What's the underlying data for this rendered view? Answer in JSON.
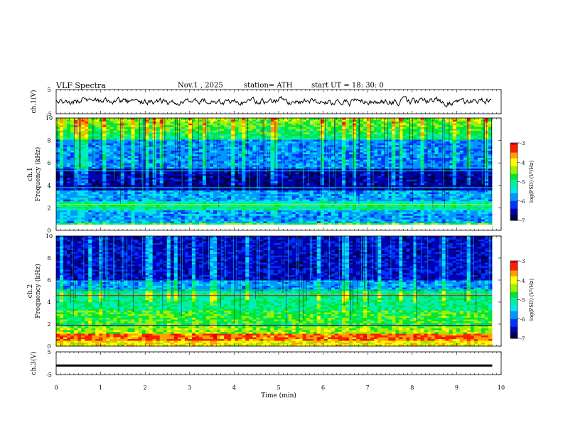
{
  "header": {
    "title": "VLF  Spectra",
    "date": "Nov.1  , 2025",
    "station": "station= ATH",
    "start": "start  UT  =   18: 30: 0"
  },
  "colors": {
    "spectrum": [
      "#00004a",
      "#0000b4",
      "#0032ff",
      "#0096ff",
      "#00e6f0",
      "#00f0a0",
      "#00e632",
      "#a0f000",
      "#ffff00",
      "#ffa000",
      "#ff1e00",
      "#dc0000",
      "#ffffff"
    ]
  },
  "chart_data": [
    {
      "type": "line",
      "id": "ch1-waveform",
      "ylabel": "ch.1(V)",
      "ylim": [
        -5,
        5
      ],
      "yticks": [
        "5",
        "-5"
      ],
      "xlim": [
        0,
        10
      ],
      "note": "noisy waveform around 0 V spanning roughly 0 to 9.8 min"
    },
    {
      "type": "heatmap",
      "id": "ch1-spectrogram",
      "ylabel_top": "ch.1",
      "ylabel": "Frequency  (kHz)",
      "ylim": [
        0,
        10
      ],
      "yticks": [
        "10",
        "8",
        "6",
        "4",
        "2",
        "0"
      ],
      "xlim": [
        0,
        10
      ],
      "colorbar": {
        "label": "log(PSD) (V²/Hz)",
        "ticks": [
          "-3",
          "-4",
          "-5",
          "-6",
          "-7"
        ],
        "range": [
          -7,
          -3
        ]
      }
    },
    {
      "type": "heatmap",
      "id": "ch2-spectrogram",
      "ylabel_top": "ch.2",
      "ylabel": "Frequency  (kHz)",
      "ylim": [
        0,
        10
      ],
      "yticks": [
        "10",
        "8",
        "6",
        "4",
        "2",
        "0"
      ],
      "xlim": [
        0,
        10
      ],
      "colorbar": {
        "label": "log(PSD) (V²/Hz)",
        "ticks": [
          "-3",
          "-4",
          "-5",
          "-6",
          "-7"
        ],
        "range": [
          -7,
          -3
        ]
      }
    },
    {
      "type": "line",
      "id": "ch3-waveform",
      "ylabel": "ch.3(V)",
      "ylim": [
        -5,
        5
      ],
      "yticks": [
        "5",
        "-5"
      ],
      "xlim": [
        0,
        10
      ],
      "xlabel": "Time  (min)",
      "xticks": [
        "0",
        "1",
        "2",
        "3",
        "4",
        "5",
        "6",
        "7",
        "8",
        "9",
        "10"
      ],
      "data_end_min": 9.8,
      "level": -1
    }
  ]
}
